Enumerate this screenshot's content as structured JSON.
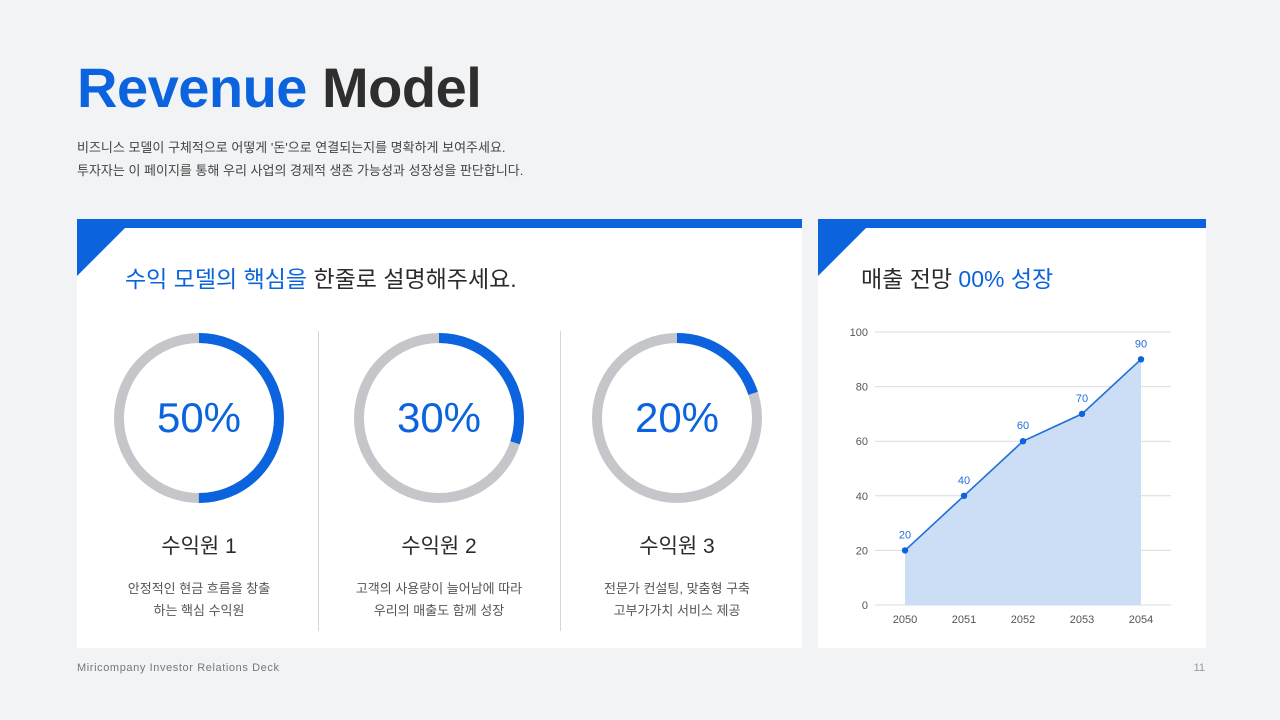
{
  "header": {
    "title_accent": "Revenue",
    "title_rest": "Model",
    "desc_line1": "비즈니스 모델이 구체적으로 어떻게 '돈'으로 연결되는지를 명확하게 보여주세요.",
    "desc_line2": "투자자는 이 페이지를 통해 우리 사업의 경제적 생존 가능성과 성장성을 판단합니다."
  },
  "left_card": {
    "heading_highlight": "수익 모델의 핵심을",
    "heading_rest": "한줄로 설명해주세요.",
    "sources": [
      {
        "percent": 50,
        "percent_label": "50%",
        "name": "수익원 1",
        "desc_line1": "안정적인 현금 흐름을 창출",
        "desc_line2": "하는 핵심 수익원"
      },
      {
        "percent": 30,
        "percent_label": "30%",
        "name": "수익원 2",
        "desc_line1": "고객의 사용량이 늘어남에 따라",
        "desc_line2": "우리의 매출도 함께 성장"
      },
      {
        "percent": 20,
        "percent_label": "20%",
        "name": "수익원 3",
        "desc_line1": "전문가 컨설팅, 맞춤형 구축",
        "desc_line2": "고부가가치 서비스 제공"
      }
    ]
  },
  "right_card": {
    "heading_prefix": "매출 전망",
    "heading_highlight": "00% 성장"
  },
  "chart_data": {
    "type": "area",
    "x": [
      "2050",
      "2051",
      "2052",
      "2053",
      "2054"
    ],
    "values": [
      20,
      40,
      60,
      70,
      90
    ],
    "data_labels": [
      "20",
      "40",
      "60",
      "70",
      "90"
    ],
    "ylim": [
      0,
      100
    ],
    "yticks": [
      "0",
      "20",
      "40",
      "60",
      "80",
      "100"
    ],
    "grid": true,
    "title": "",
    "xlabel": "",
    "ylabel": ""
  },
  "colors": {
    "accent": "#0b63de",
    "donut_track": "#c5c6ca",
    "area_fill": "#c9dbf5"
  },
  "footer": {
    "deck_name": "Miricompany Investor Relations Deck",
    "page_number": "11"
  }
}
